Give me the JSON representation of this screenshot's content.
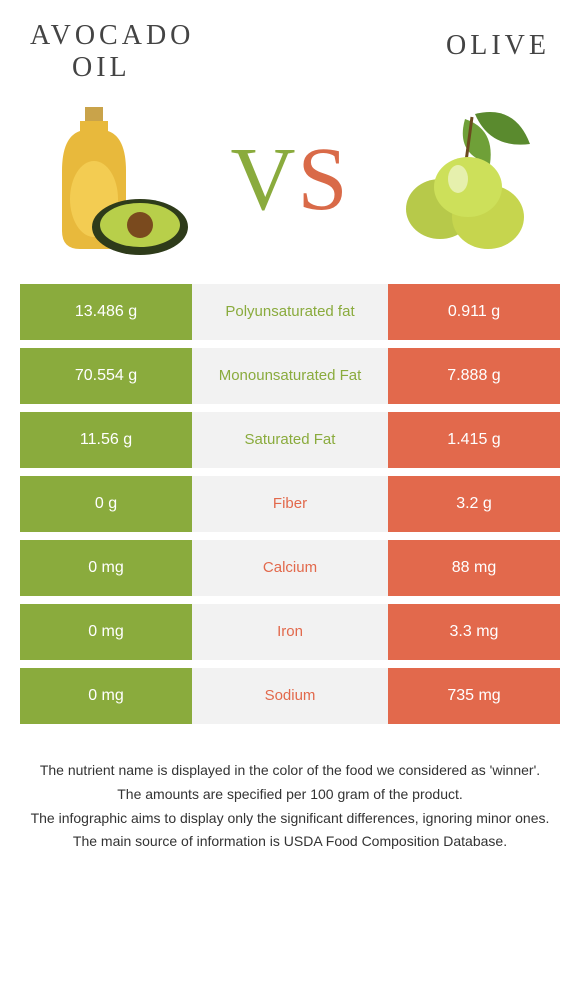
{
  "colors": {
    "left_block": "#8aab3d",
    "right_block": "#e2694c",
    "mid_bg": "#f2f2f2",
    "mid_text_left_winner": "#8aab3d",
    "mid_text_right_winner": "#e2694c"
  },
  "header": {
    "left_title_line1": "AVOCADO",
    "left_title_line2": "OIL",
    "right_title": "OLIVE"
  },
  "vs": {
    "v": "V",
    "s": "S"
  },
  "rows": [
    {
      "left": "13.486 g",
      "label": "Polyunsaturated fat",
      "right": "0.911 g",
      "winner": "left"
    },
    {
      "left": "70.554 g",
      "label": "Monounsaturated Fat",
      "right": "7.888 g",
      "winner": "left"
    },
    {
      "left": "11.56 g",
      "label": "Saturated Fat",
      "right": "1.415 g",
      "winner": "left"
    },
    {
      "left": "0 g",
      "label": "Fiber",
      "right": "3.2 g",
      "winner": "right"
    },
    {
      "left": "0 mg",
      "label": "Calcium",
      "right": "88 mg",
      "winner": "right"
    },
    {
      "left": "0 mg",
      "label": "Iron",
      "right": "3.3 mg",
      "winner": "right"
    },
    {
      "left": "0 mg",
      "label": "Sodium",
      "right": "735 mg",
      "winner": "right"
    }
  ],
  "footer": {
    "line1": "The nutrient name is displayed in the color of the food we considered as 'winner'.",
    "line2": "The amounts are specified per 100 gram of the product.",
    "line3": "The infographic aims to display only the significant differences, ignoring minor ones.",
    "line4": "The main source of information is USDA Food Composition Database."
  }
}
